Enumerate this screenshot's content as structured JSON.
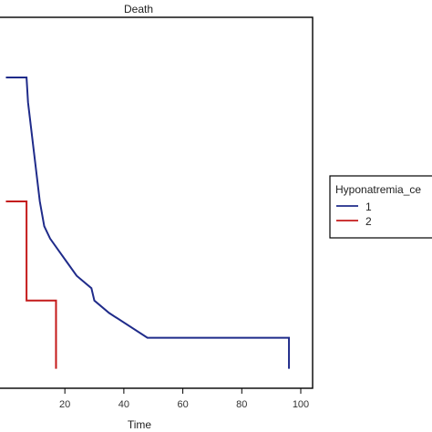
{
  "chart_data": {
    "type": "line",
    "step": true,
    "title": "Death",
    "xlabel": "Time",
    "ylabel": "",
    "xlim": [
      -2,
      100
    ],
    "ylim": [
      0,
      1.0
    ],
    "xticks": [
      "20",
      "40",
      "60",
      "80",
      "100"
    ],
    "xtick_values": [
      20,
      40,
      60,
      80,
      100
    ],
    "grid": false,
    "legend": {
      "title": "Hyponatremia_ce",
      "placement": "right",
      "entries": [
        "1",
        "2"
      ]
    },
    "series": [
      {
        "name": "1",
        "color": "#1f2b8a",
        "x": [
          0,
          7,
          7.5,
          8.5,
          9.5,
          10.5,
          11.5,
          13,
          15,
          18,
          21,
          24,
          29,
          30,
          35,
          48,
          96,
          96
        ],
        "y": [
          1.0,
          1.0,
          0.92,
          0.84,
          0.76,
          0.68,
          0.6,
          0.52,
          0.48,
          0.44,
          0.4,
          0.36,
          0.32,
          0.28,
          0.24,
          0.16,
          0.16,
          0.06
        ]
      },
      {
        "name": "2",
        "color": "#c41a1a",
        "x": [
          0,
          7,
          7,
          17,
          17
        ],
        "y": [
          0.6,
          0.6,
          0.28,
          0.28,
          0.06
        ]
      }
    ]
  }
}
